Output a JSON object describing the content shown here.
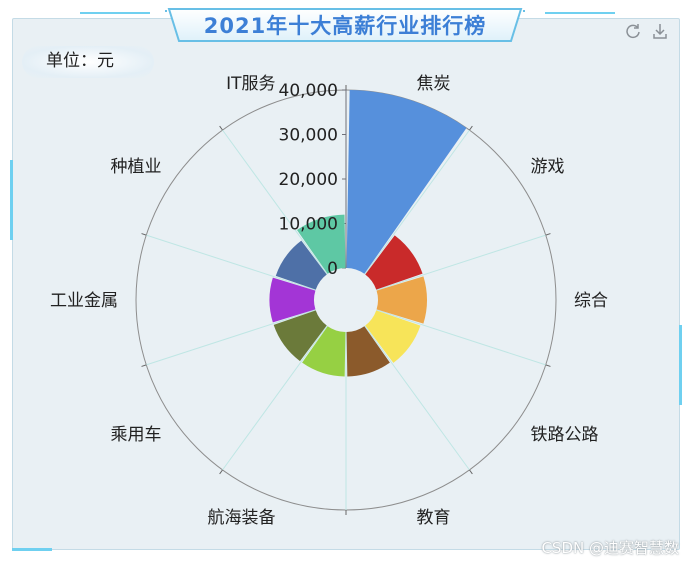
{
  "title": "2021年十大高薪行业排行榜",
  "unit_label": "单位：元",
  "toolbox": {
    "refresh_icon": "refresh-icon",
    "download_icon": "download-icon"
  },
  "watermark": "CSDN @迪赛智慧数",
  "chart_data": {
    "type": "bar",
    "coordinate_system": "polar",
    "categories": [
      "焦炭",
      "游戏",
      "综合",
      "铁路公路",
      "教育",
      "航海装备",
      "乘用车",
      "工业金属",
      "种植业",
      "IT服务"
    ],
    "values": [
      40000,
      11000,
      11000,
      10500,
      10000,
      10000,
      10000,
      10000,
      9500,
      12000
    ],
    "colors": [
      "#5690dc",
      "#c92a2a",
      "#eca64a",
      "#f7e459",
      "#8b5a2b",
      "#96d043",
      "#6b7a3a",
      "#a335d6",
      "#4e70a7",
      "#5ec8a4"
    ],
    "radial_axis": {
      "ticks": [
        "0",
        "10,000",
        "20,000",
        "30,000",
        "40,000"
      ],
      "range": [
        0,
        40000
      ]
    },
    "grid_color": "#bfe6e4"
  }
}
